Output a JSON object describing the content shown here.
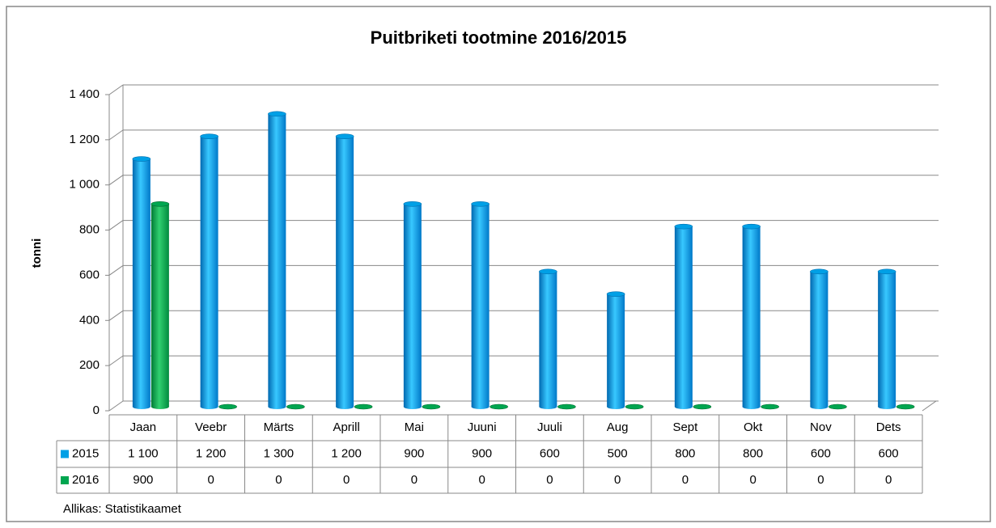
{
  "chart_data": {
    "type": "bar",
    "title": "Puitbriketi tootmine 2016/2015",
    "y_label": "tonni",
    "source": "Allikas: Statistikaamet",
    "categories": [
      "Jaan",
      "Veebr",
      "Märts",
      "Aprill",
      "Mai",
      "Juuni",
      "Juuli",
      "Aug",
      "Sept",
      "Okt",
      "Nov",
      "Dets"
    ],
    "series": [
      {
        "name": "2015",
        "color": "#00a0e6",
        "values": [
          1100,
          1200,
          1300,
          1200,
          900,
          900,
          600,
          500,
          800,
          800,
          600,
          600
        ],
        "value_labels": [
          "1 100",
          "1 200",
          "1 300",
          "1 200",
          "900",
          "900",
          "600",
          "500",
          "800",
          "800",
          "600",
          "600"
        ]
      },
      {
        "name": "2016",
        "color": "#00a650",
        "values": [
          900,
          0,
          0,
          0,
          0,
          0,
          0,
          0,
          0,
          0,
          0,
          0
        ]
      }
    ],
    "ylim": [
      0,
      1400
    ],
    "yticks": [
      0,
      200,
      400,
      600,
      800,
      {
        "value": 1000,
        "label": "1 000"
      },
      {
        "value": 1200,
        "label": "1 200"
      },
      {
        "value": 1400,
        "label": "1 400"
      }
    ],
    "grid": true,
    "data_table": true
  }
}
